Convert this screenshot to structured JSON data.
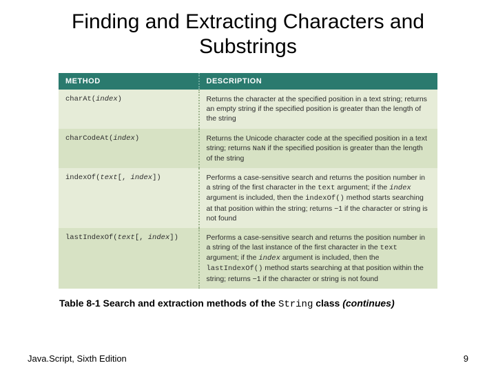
{
  "title": "Finding and Extracting Characters and Substrings",
  "table": {
    "header_bg": "#2a7a6e",
    "row_odd_bg": "#e6ecd8",
    "row_even_bg": "#d7e2c4",
    "columns": {
      "method": "METHOD",
      "description": "DESCRIPTION"
    },
    "rows": [
      {
        "method_html": "charAt(<span class=\"italic\">index</span>)",
        "desc_html": "Returns the character at the specified position in a text string; returns an empty string if the specified position is greater than the length of the string"
      },
      {
        "method_html": "charCodeAt(<span class=\"italic\">index</span>)",
        "desc_html": "Returns the Unicode character code at the specified position in a text string; returns <span class=\"mono\">NaN</span> if the specified position is greater than the length of the string"
      },
      {
        "method_html": "indexOf(<span class=\"italic\">text</span>[, <span class=\"italic\">index</span>])",
        "desc_html": "Performs a case-sensitive search and returns the position number in a string of the first character in the <span class=\"mono\">text</span> argument; if the <span class=\"italic mono\">index</span> argument is included, then the <span class=\"mono\">indexOf()</span> method starts searching at that position within the string; returns &minus;1 if the character or string is not found"
      },
      {
        "method_html": "lastIndexOf(<span class=\"italic\">text</span>[, <span class=\"italic\">index</span>])",
        "desc_html": "Performs a case-sensitive search and returns the position number in a string of the last instance of the first character in the <span class=\"mono\">text</span> argument; if the <span class=\"italic mono\">index</span> argument is included, then the <span class=\"mono\">lastIndexOf()</span> method starts searching at that position within the string; returns &minus;1 if the character or string is not found"
      }
    ]
  },
  "caption": {
    "label": "Table 8-1",
    "text": "Search and extraction methods of the",
    "code": "String",
    "tail": "class",
    "continues": "(continues)"
  },
  "footer": {
    "book": "Java.Script, Sixth Edition",
    "page": "9"
  }
}
